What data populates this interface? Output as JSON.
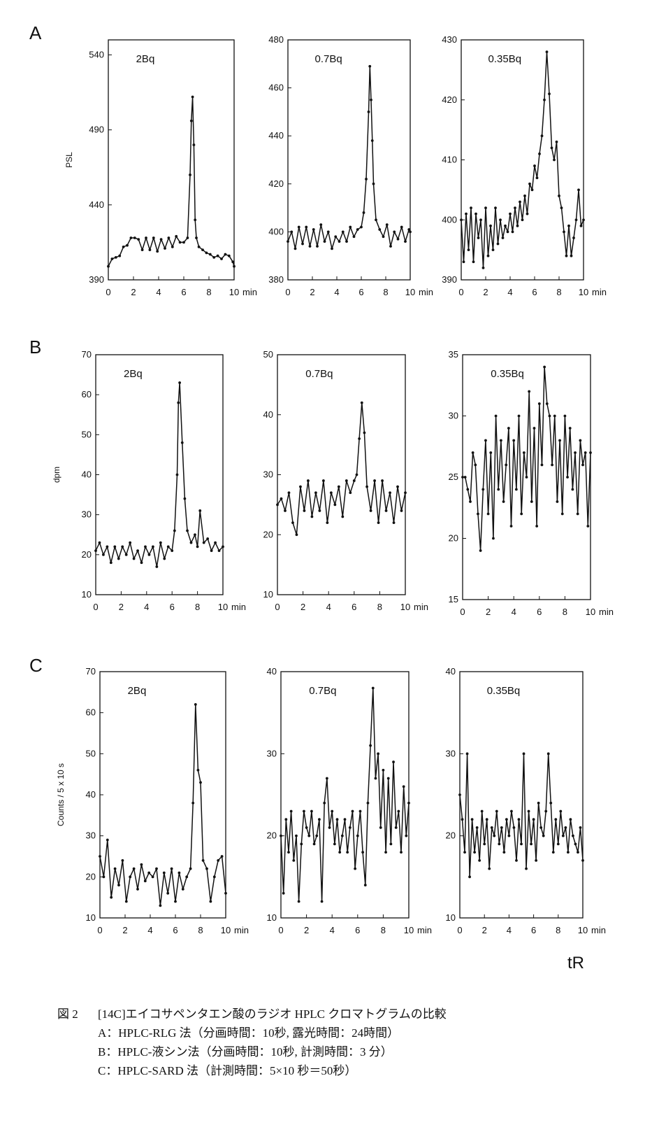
{
  "figure": {
    "row_labels": [
      "A",
      "B",
      "C"
    ],
    "x_axis_label": "tR",
    "x_unit": "min",
    "caption": {
      "number": "図 2",
      "title": "[14C]エイコサペンタエン酸のラジオ HPLC クロマトグラムの比較",
      "items": [
        "A：HPLC-RLG 法（分画時間：10秒, 露光時間：24時間）",
        "B：HPLC-液シン法（分画時間：10秒, 計測時間：3 分）",
        "C：HPLC-SARD 法（計測時間：5×10 秒＝50秒）"
      ]
    }
  },
  "chart_data": [
    {
      "type": "line",
      "row": "A",
      "title": "2Bq",
      "ylabel": "PSL",
      "xlim": [
        0,
        10
      ],
      "ylim": [
        390,
        550
      ],
      "xticks": [
        0,
        2,
        4,
        6,
        8,
        10
      ],
      "yticks": [
        390,
        440,
        490,
        540
      ],
      "x_unit": "min",
      "x": [
        0,
        0.3,
        0.6,
        0.9,
        1.2,
        1.5,
        1.8,
        2.1,
        2.4,
        2.7,
        3.0,
        3.3,
        3.6,
        3.9,
        4.2,
        4.5,
        4.8,
        5.1,
        5.4,
        5.7,
        6.0,
        6.3,
        6.5,
        6.6,
        6.7,
        6.8,
        6.9,
        7.0,
        7.2,
        7.5,
        7.8,
        8.1,
        8.4,
        8.7,
        9.0,
        9.3,
        9.6,
        9.9,
        10.0
      ],
      "y": [
        399,
        404,
        405,
        406,
        412,
        413,
        418,
        418,
        417,
        410,
        418,
        410,
        418,
        409,
        417,
        411,
        418,
        412,
        419,
        415,
        415,
        418,
        460,
        496,
        512,
        480,
        430,
        418,
        412,
        410,
        408,
        407,
        405,
        406,
        404,
        407,
        406,
        402,
        399
      ]
    },
    {
      "type": "line",
      "row": "A",
      "title": "0.7Bq",
      "ylabel": "",
      "xlim": [
        0,
        10
      ],
      "ylim": [
        380,
        480
      ],
      "xticks": [
        0,
        2,
        4,
        6,
        8,
        10
      ],
      "yticks": [
        380,
        400,
        420,
        440,
        460,
        480
      ],
      "x_unit": "min",
      "x": [
        0,
        0.3,
        0.6,
        0.9,
        1.2,
        1.5,
        1.8,
        2.1,
        2.4,
        2.7,
        3.0,
        3.3,
        3.6,
        3.9,
        4.2,
        4.5,
        4.8,
        5.1,
        5.4,
        5.7,
        6.0,
        6.2,
        6.4,
        6.6,
        6.7,
        6.8,
        6.9,
        7.0,
        7.2,
        7.5,
        7.8,
        8.1,
        8.4,
        8.7,
        9.0,
        9.3,
        9.6,
        9.9,
        10.0
      ],
      "y": [
        396,
        400,
        393,
        402,
        395,
        402,
        394,
        401,
        394,
        403,
        396,
        400,
        393,
        398,
        396,
        400,
        396,
        402,
        398,
        401,
        402,
        408,
        422,
        450,
        469,
        455,
        438,
        420,
        405,
        401,
        398,
        403,
        394,
        400,
        397,
        402,
        396,
        401,
        400
      ]
    },
    {
      "type": "line",
      "row": "A",
      "title": "0.35Bq",
      "ylabel": "",
      "xlim": [
        0,
        10
      ],
      "ylim": [
        390,
        430
      ],
      "xticks": [
        0,
        2,
        4,
        6,
        8,
        10
      ],
      "yticks": [
        390,
        400,
        410,
        420,
        430
      ],
      "x_unit": "min",
      "x": [
        0,
        0.2,
        0.4,
        0.6,
        0.8,
        1.0,
        1.2,
        1.4,
        1.6,
        1.8,
        2.0,
        2.2,
        2.4,
        2.6,
        2.8,
        3.0,
        3.2,
        3.4,
        3.6,
        3.8,
        4.0,
        4.2,
        4.4,
        4.6,
        4.8,
        5.0,
        5.2,
        5.4,
        5.6,
        5.8,
        6.0,
        6.2,
        6.4,
        6.6,
        6.8,
        7.0,
        7.2,
        7.4,
        7.6,
        7.8,
        8.0,
        8.2,
        8.4,
        8.6,
        8.8,
        9.0,
        9.2,
        9.4,
        9.6,
        9.8,
        10.0
      ],
      "y": [
        400,
        393,
        401,
        395,
        402,
        393,
        401,
        397,
        400,
        392,
        402,
        394,
        399,
        395,
        402,
        396,
        400,
        397,
        399,
        398,
        401,
        398,
        402,
        399,
        403,
        400,
        404,
        401,
        406,
        405,
        409,
        407,
        411,
        414,
        420,
        428,
        421,
        412,
        410,
        413,
        404,
        402,
        398,
        394,
        399,
        394,
        397,
        400,
        405,
        399,
        400
      ]
    },
    {
      "type": "line",
      "row": "B",
      "title": "2Bq",
      "ylabel": "dpm",
      "xlim": [
        0,
        10
      ],
      "ylim": [
        10,
        70
      ],
      "xticks": [
        0,
        2,
        4,
        6,
        8,
        10
      ],
      "yticks": [
        10,
        20,
        30,
        40,
        50,
        60,
        70
      ],
      "x_unit": "min",
      "x": [
        0,
        0.3,
        0.6,
        0.9,
        1.2,
        1.5,
        1.8,
        2.1,
        2.4,
        2.7,
        3.0,
        3.3,
        3.6,
        3.9,
        4.2,
        4.5,
        4.8,
        5.1,
        5.4,
        5.7,
        6.0,
        6.2,
        6.4,
        6.5,
        6.6,
        6.8,
        7.0,
        7.2,
        7.5,
        7.8,
        8.0,
        8.2,
        8.5,
        8.8,
        9.1,
        9.4,
        9.7,
        10.0
      ],
      "y": [
        21,
        23,
        20,
        22,
        18,
        22,
        19,
        22,
        20,
        23,
        19,
        21,
        18,
        22,
        20,
        22,
        17,
        23,
        19,
        22,
        21,
        26,
        40,
        58,
        63,
        48,
        34,
        26,
        23,
        25,
        22,
        31,
        23,
        24,
        21,
        23,
        21,
        22
      ]
    },
    {
      "type": "line",
      "row": "B",
      "title": "0.7Bq",
      "ylabel": "",
      "xlim": [
        0,
        10
      ],
      "ylim": [
        10,
        50
      ],
      "xticks": [
        0,
        2,
        4,
        6,
        8,
        10
      ],
      "yticks": [
        10,
        20,
        30,
        40,
        50
      ],
      "x_unit": "min",
      "x": [
        0,
        0.3,
        0.6,
        0.9,
        1.2,
        1.5,
        1.8,
        2.1,
        2.4,
        2.7,
        3.0,
        3.3,
        3.6,
        3.9,
        4.2,
        4.5,
        4.8,
        5.1,
        5.4,
        5.7,
        6.0,
        6.2,
        6.4,
        6.6,
        6.8,
        7.0,
        7.3,
        7.6,
        7.9,
        8.2,
        8.5,
        8.8,
        9.1,
        9.4,
        9.7,
        10.0
      ],
      "y": [
        25,
        26,
        24,
        27,
        22,
        20,
        28,
        24,
        29,
        23,
        27,
        24,
        29,
        22,
        27,
        25,
        28,
        23,
        29,
        27,
        29,
        30,
        36,
        42,
        37,
        28,
        24,
        29,
        22,
        29,
        24,
        27,
        22,
        28,
        24,
        27
      ]
    },
    {
      "type": "line",
      "row": "B",
      "title": "0.35Bq",
      "ylabel": "",
      "xlim": [
        0,
        10
      ],
      "ylim": [
        15,
        35
      ],
      "xticks": [
        0,
        2,
        4,
        6,
        8,
        10
      ],
      "yticks": [
        15,
        20,
        25,
        30,
        35
      ],
      "x_unit": "min",
      "x": [
        0,
        0.2,
        0.4,
        0.6,
        0.8,
        1.0,
        1.2,
        1.4,
        1.6,
        1.8,
        2.0,
        2.2,
        2.4,
        2.6,
        2.8,
        3.0,
        3.2,
        3.4,
        3.6,
        3.8,
        4.0,
        4.2,
        4.4,
        4.6,
        4.8,
        5.0,
        5.2,
        5.4,
        5.6,
        5.8,
        6.0,
        6.2,
        6.4,
        6.6,
        6.8,
        7.0,
        7.2,
        7.4,
        7.6,
        7.8,
        8.0,
        8.2,
        8.4,
        8.6,
        8.8,
        9.0,
        9.2,
        9.4,
        9.6,
        9.8,
        10.0
      ],
      "y": [
        25,
        25,
        24,
        23,
        27,
        26,
        22,
        19,
        24,
        28,
        22,
        27,
        20,
        30,
        24,
        28,
        23,
        26,
        29,
        21,
        28,
        24,
        30,
        22,
        27,
        25,
        32,
        23,
        29,
        21,
        31,
        26,
        34,
        31,
        30,
        26,
        30,
        23,
        28,
        22,
        30,
        25,
        29,
        24,
        27,
        22,
        28,
        26,
        27,
        21,
        27
      ]
    },
    {
      "type": "line",
      "row": "C",
      "title": "2Bq",
      "ylabel": "Counts / 5 x 10 s",
      "xlim": [
        0,
        10
      ],
      "ylim": [
        10,
        70
      ],
      "xticks": [
        0,
        2,
        4,
        6,
        8,
        10
      ],
      "yticks": [
        10,
        20,
        30,
        40,
        50,
        60,
        70
      ],
      "x_unit": "min",
      "x": [
        0,
        0.3,
        0.6,
        0.9,
        1.2,
        1.5,
        1.8,
        2.1,
        2.4,
        2.7,
        3.0,
        3.3,
        3.6,
        3.9,
        4.2,
        4.5,
        4.8,
        5.1,
        5.4,
        5.7,
        6.0,
        6.3,
        6.6,
        6.9,
        7.2,
        7.4,
        7.6,
        7.8,
        8.0,
        8.2,
        8.5,
        8.8,
        9.1,
        9.4,
        9.7,
        10.0
      ],
      "y": [
        25,
        20,
        29,
        15,
        22,
        18,
        24,
        14,
        20,
        22,
        17,
        23,
        19,
        21,
        20,
        22,
        13,
        21,
        16,
        22,
        14,
        21,
        17,
        20,
        22,
        38,
        62,
        46,
        43,
        24,
        22,
        14,
        20,
        24,
        25,
        16
      ]
    },
    {
      "type": "line",
      "row": "C",
      "title": "0.7Bq",
      "ylabel": "",
      "xlim": [
        0,
        10
      ],
      "ylim": [
        10,
        40
      ],
      "xticks": [
        0,
        2,
        4,
        6,
        8,
        10
      ],
      "yticks": [
        10,
        20,
        30,
        40
      ],
      "x_unit": "min",
      "x": [
        0,
        0.2,
        0.4,
        0.6,
        0.8,
        1.0,
        1.2,
        1.4,
        1.6,
        1.8,
        2.0,
        2.2,
        2.4,
        2.6,
        2.8,
        3.0,
        3.2,
        3.4,
        3.6,
        3.8,
        4.0,
        4.2,
        4.4,
        4.6,
        4.8,
        5.0,
        5.2,
        5.4,
        5.6,
        5.8,
        6.0,
        6.2,
        6.4,
        6.6,
        6.8,
        7.0,
        7.2,
        7.4,
        7.6,
        7.8,
        8.0,
        8.2,
        8.4,
        8.6,
        8.8,
        9.0,
        9.2,
        9.4,
        9.6,
        9.8,
        10.0
      ],
      "y": [
        20,
        13,
        22,
        18,
        23,
        17,
        20,
        12,
        19,
        23,
        21,
        20,
        23,
        19,
        20,
        22,
        12,
        24,
        27,
        21,
        23,
        19,
        22,
        18,
        20,
        22,
        18,
        21,
        23,
        16,
        20,
        23,
        18,
        14,
        24,
        31,
        38,
        27,
        30,
        21,
        28,
        18,
        27,
        19,
        29,
        21,
        23,
        18,
        26,
        20,
        24
      ]
    },
    {
      "type": "line",
      "row": "C",
      "title": "0.35Bq",
      "ylabel": "",
      "xlim": [
        0,
        10
      ],
      "ylim": [
        10,
        40
      ],
      "xticks": [
        0,
        2,
        4,
        6,
        8,
        10
      ],
      "yticks": [
        10,
        20,
        30,
        40
      ],
      "x_unit": "min",
      "x": [
        0,
        0.2,
        0.4,
        0.6,
        0.8,
        1.0,
        1.2,
        1.4,
        1.6,
        1.8,
        2.0,
        2.2,
        2.4,
        2.6,
        2.8,
        3.0,
        3.2,
        3.4,
        3.6,
        3.8,
        4.0,
        4.2,
        4.4,
        4.6,
        4.8,
        5.0,
        5.2,
        5.4,
        5.6,
        5.8,
        6.0,
        6.2,
        6.4,
        6.6,
        6.8,
        7.0,
        7.2,
        7.4,
        7.6,
        7.8,
        8.0,
        8.2,
        8.4,
        8.6,
        8.8,
        9.0,
        9.2,
        9.4,
        9.6,
        9.8,
        10.0
      ],
      "y": [
        25,
        22,
        18,
        30,
        15,
        22,
        18,
        21,
        17,
        23,
        19,
        22,
        16,
        21,
        20,
        23,
        19,
        21,
        18,
        22,
        20,
        23,
        21,
        17,
        22,
        19,
        30,
        16,
        23,
        19,
        22,
        17,
        24,
        21,
        20,
        23,
        30,
        24,
        18,
        22,
        19,
        23,
        20,
        21,
        18,
        22,
        20,
        19,
        18,
        21,
        17
      ]
    }
  ]
}
